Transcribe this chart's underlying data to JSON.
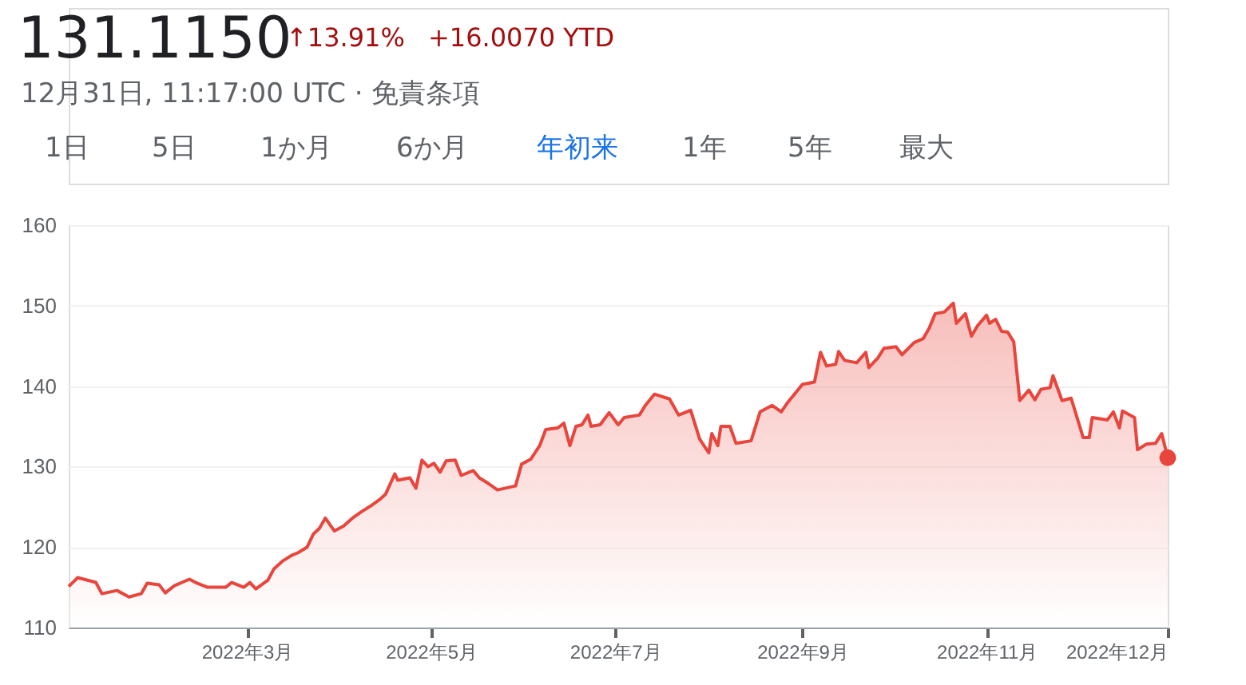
{
  "chart_data": {
    "type": "area",
    "title": "131.1150",
    "subtitle": "12月31日, 11:17:00 UTC · 免責条項",
    "annotations": [
      "↑13.91%",
      "+16.0070 YTD",
      "1日",
      "5日",
      "1か月",
      "6か月",
      "年初来",
      "1年",
      "5年",
      "最大"
    ],
    "x": [
      "2022-01-01",
      "2022-01-04",
      "2022-01-10",
      "2022-01-12",
      "2022-01-17",
      "2022-01-21",
      "2022-01-25",
      "2022-01-27",
      "2022-01-31",
      "2022-02-02",
      "2022-02-05",
      "2022-02-10",
      "2022-02-12",
      "2022-02-16",
      "2022-02-22",
      "2022-02-24",
      "2022-02-28",
      "2022-03-02",
      "2022-03-04",
      "2022-03-08",
      "2022-03-10",
      "2022-03-13",
      "2022-03-16",
      "2022-03-18",
      "2022-03-21",
      "2022-03-23",
      "2022-03-25",
      "2022-03-27",
      "2022-03-30",
      "2022-04-02",
      "2022-04-05",
      "2022-04-08",
      "2022-04-11",
      "2022-04-14",
      "2022-04-16",
      "2022-04-19",
      "2022-04-20",
      "2022-04-24",
      "2022-04-26",
      "2022-04-28",
      "2022-04-30",
      "2022-05-02",
      "2022-05-04",
      "2022-05-06",
      "2022-05-09",
      "2022-05-11",
      "2022-05-15",
      "2022-05-17",
      "2022-05-20",
      "2022-05-23",
      "2022-05-29",
      "2022-05-31",
      "2022-06-03",
      "2022-06-06",
      "2022-06-08",
      "2022-06-12",
      "2022-06-14",
      "2022-06-16",
      "2022-06-18",
      "2022-06-20",
      "2022-06-22",
      "2022-06-23",
      "2022-06-26",
      "2022-06-29",
      "2022-07-02",
      "2022-07-04",
      "2022-07-09",
      "2022-07-11",
      "2022-07-14",
      "2022-07-19",
      "2022-07-22",
      "2022-07-26",
      "2022-07-29",
      "2022-08-01",
      "2022-08-02",
      "2022-08-04",
      "2022-08-05",
      "2022-08-08",
      "2022-08-10",
      "2022-08-15",
      "2022-08-18",
      "2022-08-22",
      "2022-08-25",
      "2022-08-27",
      "2022-09-01",
      "2022-09-05",
      "2022-09-07",
      "2022-09-09",
      "2022-09-12",
      "2022-09-13",
      "2022-09-15",
      "2022-09-19",
      "2022-09-22",
      "2022-09-23",
      "2022-09-26",
      "2022-09-28",
      "2022-10-02",
      "2022-10-04",
      "2022-10-08",
      "2022-10-11",
      "2022-10-13",
      "2022-10-15",
      "2022-10-18",
      "2022-10-21",
      "2022-10-22",
      "2022-10-25",
      "2022-10-27",
      "2022-10-29",
      "2022-11-01",
      "2022-11-02",
      "2022-11-04",
      "2022-11-06",
      "2022-11-08",
      "2022-11-10",
      "2022-11-12",
      "2022-11-15",
      "2022-11-17",
      "2022-11-19",
      "2022-11-22",
      "2022-11-23",
      "2022-11-26",
      "2022-11-29",
      "2022-12-03",
      "2022-12-05",
      "2022-12-06",
      "2022-12-11",
      "2022-12-13",
      "2022-12-15",
      "2022-12-16",
      "2022-12-20",
      "2022-12-21",
      "2022-12-24",
      "2022-12-27",
      "2022-12-29",
      "2022-12-31"
    ],
    "series": [
      {
        "color": "#e8453c",
        "values": [
          115.1,
          116.2,
          115.6,
          114.2,
          114.6,
          113.8,
          114.2,
          115.5,
          115.3,
          114.3,
          115.2,
          116.0,
          115.6,
          115.0,
          115.0,
          115.6,
          115.0,
          115.6,
          114.8,
          115.9,
          117.3,
          118.3,
          119.0,
          119.3,
          120.0,
          121.6,
          122.3,
          123.6,
          122.0,
          122.6,
          123.6,
          124.4,
          125.1,
          125.9,
          126.6,
          129.1,
          128.3,
          128.6,
          127.3,
          130.8,
          130.0,
          130.4,
          129.3,
          130.7,
          130.8,
          128.9,
          129.5,
          128.6,
          127.9,
          127.1,
          127.6,
          130.3,
          130.9,
          132.6,
          134.6,
          134.8,
          135.4,
          132.6,
          135.0,
          135.2,
          136.4,
          135.0,
          135.2,
          136.7,
          135.2,
          136.1,
          136.4,
          137.6,
          139.0,
          138.4,
          136.4,
          137.0,
          133.4,
          131.7,
          134.1,
          132.6,
          135.0,
          135.0,
          132.9,
          133.2,
          136.8,
          137.6,
          136.8,
          137.9,
          140.2,
          140.5,
          144.2,
          142.5,
          142.7,
          144.3,
          143.2,
          142.9,
          144.2,
          142.3,
          143.5,
          144.7,
          144.9,
          143.9,
          145.4,
          145.9,
          147.2,
          149.0,
          149.2,
          150.3,
          147.8,
          149.0,
          146.2,
          147.5,
          148.8,
          147.8,
          148.3,
          146.8,
          146.7,
          145.5,
          138.2,
          139.5,
          138.3,
          139.6,
          139.8,
          141.3,
          138.2,
          138.5,
          133.6,
          133.6,
          136.1,
          135.8,
          136.8,
          134.8,
          136.9,
          136.1,
          132.1,
          132.8,
          132.9,
          134.1,
          131.1
        ]
      }
    ],
    "xlim": [
      "2022-01-01",
      "2022-12-31"
    ],
    "xticks": [
      {
        "value": "2022-03-01",
        "label": "2022年3月"
      },
      {
        "value": "2022-05-01",
        "label": "2022年5月"
      },
      {
        "value": "2022-07-01",
        "label": "2022年7月"
      },
      {
        "value": "2022-09-01",
        "label": "2022年9月"
      },
      {
        "value": "2022-11-01",
        "label": "2022年11月"
      },
      {
        "value": "2022-12-31",
        "label": "2022年12月"
      }
    ],
    "ylim": [
      110,
      160
    ],
    "yticks": [
      110,
      120,
      130,
      140,
      150,
      160
    ],
    "grid": "y"
  }
}
